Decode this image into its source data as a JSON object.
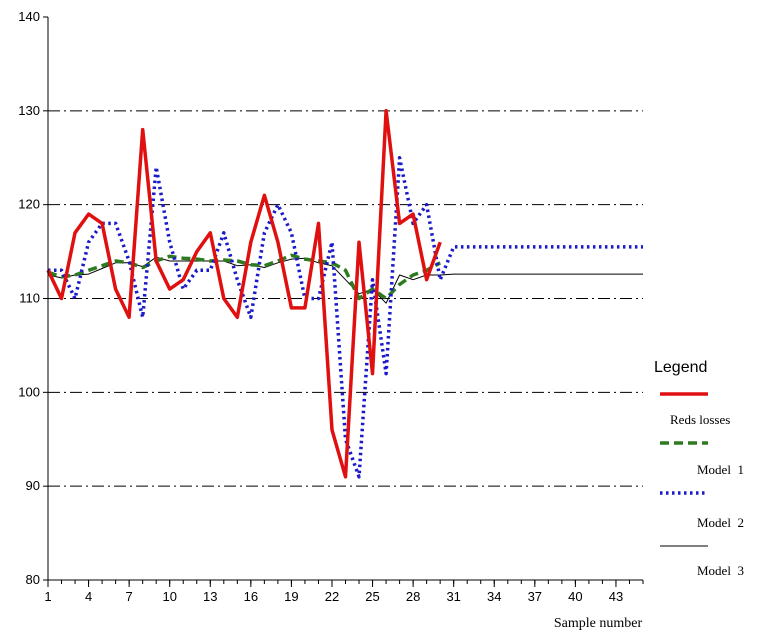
{
  "chart_data": {
    "type": "line",
    "xlabel": "Sample number",
    "ylabel": "",
    "xlim": [
      1,
      45
    ],
    "ylim": [
      80,
      140
    ],
    "x_ticks": [
      1,
      4,
      7,
      10,
      13,
      16,
      19,
      22,
      25,
      28,
      31,
      34,
      37,
      40,
      43
    ],
    "y_ticks": [
      80,
      90,
      100,
      110,
      120,
      130,
      140
    ],
    "gridlines_y": [
      90,
      100,
      110,
      120,
      130
    ],
    "grid_style": "dash-dot",
    "legend": {
      "title": "Legend",
      "placement": "right",
      "entries": [
        "Reds losses",
        "Model  1",
        "Model  2",
        "Model  3"
      ]
    },
    "series": [
      {
        "name": "Reds losses",
        "color": "#e01010",
        "style": "solid-thick",
        "x": [
          1,
          2,
          3,
          4,
          5,
          6,
          7,
          8,
          9,
          10,
          11,
          12,
          13,
          14,
          15,
          16,
          17,
          18,
          19,
          20,
          21,
          22,
          23,
          24,
          25,
          26,
          27,
          28,
          29,
          30
        ],
        "y": [
          113,
          110,
          117,
          119,
          118,
          111,
          108,
          128,
          114,
          111,
          112,
          115,
          117,
          110,
          108,
          116,
          121,
          116,
          109,
          109,
          118,
          96,
          91,
          116,
          102,
          130,
          118,
          119,
          112,
          116
        ]
      },
      {
        "name": "Model  1",
        "color": "#2d7a1f",
        "style": "dashed-thick",
        "x": [
          1,
          2,
          3,
          4,
          5,
          6,
          7,
          8,
          9,
          10,
          11,
          12,
          13,
          14,
          15,
          16,
          17,
          18,
          19,
          20,
          21,
          22,
          23,
          24,
          25,
          26,
          27,
          28,
          29,
          30
        ],
        "y": [
          112.8,
          112.3,
          112.5,
          113.0,
          113.5,
          114.0,
          113.8,
          113.3,
          114.0,
          114.5,
          114.3,
          114.2,
          114.0,
          114.1,
          114.0,
          113.6,
          113.5,
          114.0,
          114.6,
          114.2,
          114.0,
          113.8,
          113.0,
          110.0,
          111.0,
          110.0,
          111.5,
          112.5,
          113.0,
          113.8
        ]
      },
      {
        "name": "Model  2",
        "color": "#1a1acc",
        "style": "dotted-thick",
        "x": [
          1,
          2,
          3,
          4,
          5,
          6,
          7,
          8,
          9,
          10,
          11,
          12,
          13,
          14,
          15,
          16,
          17,
          18,
          19,
          20,
          21,
          22,
          23,
          24,
          25,
          26,
          27,
          28,
          29,
          30,
          31,
          45
        ],
        "y": [
          113,
          113,
          110,
          116,
          118,
          118,
          114,
          108,
          124,
          116,
          111,
          113,
          113,
          117,
          112,
          108,
          117,
          120,
          117,
          110,
          110,
          116,
          95,
          91,
          112,
          102,
          125,
          118,
          120,
          112,
          115.5,
          115.5
        ]
      },
      {
        "name": "Model  3",
        "color": "#000000",
        "style": "thin",
        "x": [
          1,
          2,
          3,
          4,
          5,
          6,
          7,
          8,
          9,
          10,
          11,
          12,
          13,
          14,
          15,
          16,
          17,
          18,
          19,
          20,
          21,
          22,
          23,
          24,
          25,
          26,
          27,
          28,
          29,
          30,
          31,
          45
        ],
        "y": [
          112.5,
          112.2,
          112.5,
          112.6,
          113.2,
          113.8,
          113.8,
          113.4,
          114.4,
          114.0,
          114.0,
          114.0,
          114.0,
          114.0,
          113.5,
          113.6,
          113.3,
          113.8,
          114.2,
          114.3,
          113.8,
          113.5,
          112.0,
          110.5,
          111.0,
          109.5,
          112.5,
          112.0,
          112.5,
          112.5,
          112.6,
          112.6
        ]
      }
    ]
  }
}
